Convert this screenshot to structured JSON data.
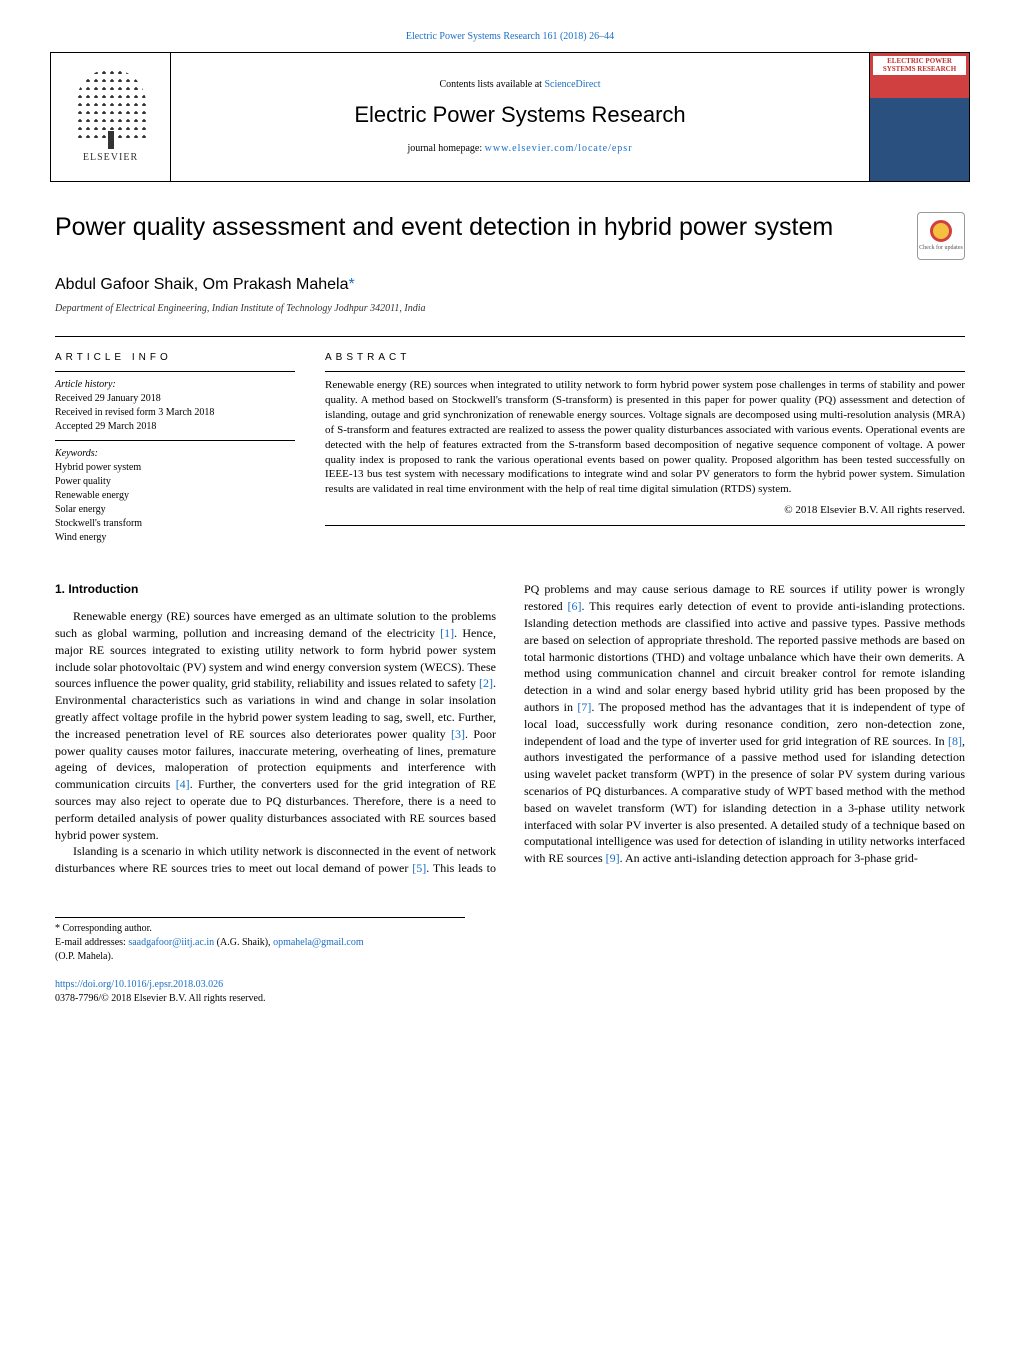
{
  "colors": {
    "link": "#1a6fc4",
    "text": "#000000",
    "cover_top": "#d04040",
    "cover_bottom": "#2a5080",
    "check_ring": "#d04040",
    "check_fill": "#f5c040"
  },
  "header": {
    "topcite": "Electric Power Systems Research 161 (2018) 26–44",
    "contents_prefix": "Contents lists available at ",
    "contents_link": "ScienceDirect",
    "journal_title": "Electric Power Systems Research",
    "homepage_label": "journal homepage: ",
    "homepage_url": "www.elsevier.com/locate/epsr",
    "publisher_logo_text": "ELSEVIER",
    "cover_title": "ELECTRIC POWER SYSTEMS RESEARCH"
  },
  "article": {
    "title": "Power quality assessment and event detection in hybrid power system",
    "check_updates": "Check for updates",
    "authors": "Abdul Gafoor Shaik, Om Prakash Mahela",
    "corr_marker": "*",
    "affiliation": "Department of Electrical Engineering, Indian Institute of Technology Jodhpur 342011, India"
  },
  "info": {
    "heading": "article info",
    "history_label": "Article history:",
    "received": "Received 29 January 2018",
    "revised": "Received in revised form 3 March 2018",
    "accepted": "Accepted 29 March 2018",
    "keywords_label": "Keywords:",
    "keywords": [
      "Hybrid power system",
      "Power quality",
      "Renewable energy",
      "Solar energy",
      "Stockwell's transform",
      "Wind energy"
    ]
  },
  "abstract": {
    "heading": "abstract",
    "text": "Renewable energy (RE) sources when integrated to utility network to form hybrid power system pose challenges in terms of stability and power quality. A method based on Stockwell's transform (S-transform) is presented in this paper for power quality (PQ) assessment and detection of islanding, outage and grid synchronization of renewable energy sources. Voltage signals are decomposed using multi-resolution analysis (MRA) of S-transform and features extracted are realized to assess the power quality disturbances associated with various events. Operational events are detected with the help of features extracted from the S-transform based decomposition of negative sequence component of voltage. A power quality index is proposed to rank the various operational events based on power quality. Proposed algorithm has been tested successfully on IEEE-13 bus test system with necessary modifications to integrate wind and solar PV generators to form the hybrid power system. Simulation results are validated in real time environment with the help of real time digital simulation (RTDS) system.",
    "copyright": "© 2018 Elsevier B.V. All rights reserved."
  },
  "body": {
    "section1_heading": "1.  Introduction",
    "p1": "Renewable energy (RE) sources have emerged as an ultimate solution to the problems such as global warming, pollution and increasing demand of the electricity [1]. Hence, major RE sources integrated to existing utility network to form hybrid power system include solar photovoltaic (PV) system and wind energy conversion system (WECS). These sources influence the power quality, grid stability, reliability and issues related to safety [2]. Environmental characteristics such as variations in wind and change in solar insolation greatly affect voltage profile in the hybrid power system leading to sag, swell, etc. Further, the increased penetration level of RE sources also deteriorates power quality [3]. Poor power quality causes motor failures, inaccurate metering, overheating of lines, premature ageing of devices, maloperation of protection equipments and interference with communication circuits [4]. Further, the converters used for the grid integration of RE sources may also reject to operate due to PQ disturbances. Therefore, there is a need to perform detailed analysis of power quality disturbances associated with RE sources based hybrid power system.",
    "p2": "Islanding is a scenario in which utility network is disconnected in the event of network disturbances where RE sources tries to meet out local demand of power [5]. This leads to PQ problems and may cause serious damage to RE sources if utility power is wrongly restored [6]. This requires early detection of event to provide anti-islanding protections. Islanding detection methods are classified into active and passive types. Passive methods are based on selection of appropriate threshold. The reported passive methods are based on total harmonic distortions (THD) and voltage unbalance which have their own demerits. A method using communication channel and circuit breaker control for remote islanding detection in a wind and solar energy based hybrid utility grid has been proposed by the authors in [7]. The proposed method has the advantages that it is independent of type of local load, successfully work during resonance condition, zero non-detection zone, independent of load and the type of inverter used for grid integration of RE sources. In [8], authors investigated the performance of a passive method used for islanding detection using wavelet packet transform (WPT) in the presence of solar PV system during various scenarios of PQ disturbances. A comparative study of WPT based method with the method based on wavelet transform (WT) for islanding detection in a 3-phase utility network interfaced with solar PV inverter is also presented. A detailed study of a technique based on computational intelligence was used for detection of islanding in utility networks interfaced with RE sources [9]. An active anti-islanding detection approach for 3-phase grid-",
    "refs": [
      "[1]",
      "[2]",
      "[3]",
      "[4]",
      "[5]",
      "[6]",
      "[7]",
      "[8]",
      "[9]"
    ]
  },
  "footnotes": {
    "corr": "* Corresponding author.",
    "email_label": "E-mail addresses: ",
    "email1": "saadgafoor@iitj.ac.in",
    "email1_name": " (A.G. Shaik), ",
    "email2": "opmahela@gmail.com",
    "email2_name": "(O.P. Mahela).",
    "doi": "https://doi.org/10.1016/j.epsr.2018.03.026",
    "issn_copy": "0378-7796/© 2018 Elsevier B.V. All rights reserved."
  }
}
